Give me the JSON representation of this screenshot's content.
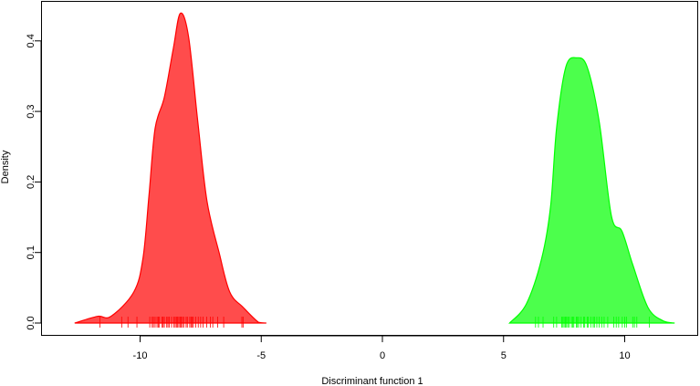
{
  "chart_data": {
    "type": "area",
    "title": "",
    "xlabel": "Discriminant function 1",
    "ylabel": "Density",
    "xlim": [
      -13.3,
      13.3
    ],
    "ylim": [
      -0.018,
      0.455
    ],
    "xticks": [
      -10,
      -5,
      0,
      5,
      10
    ],
    "xtick_labels": [
      "-10",
      "-5",
      "0",
      "5",
      "10"
    ],
    "yticks": [
      0.0,
      0.1,
      0.2,
      0.3,
      0.4
    ],
    "ytick_labels": [
      "0.0",
      "0.1",
      "0.2",
      "0.3",
      "0.4"
    ],
    "grid": false,
    "series": [
      {
        "color": "#ff4c4c",
        "edge_color": "#ff0000",
        "x": [
          -12.7,
          -11.76,
          -11.2,
          -10.26,
          -9.88,
          -9.63,
          -9.38,
          -9.0,
          -8.63,
          -8.34,
          -8.0,
          -7.62,
          -7.24,
          -6.74,
          -6.3,
          -5.74,
          -5.11,
          -4.79
        ],
        "y": [
          0,
          0.0095,
          0.0095,
          0.044,
          0.092,
          0.182,
          0.276,
          0.32,
          0.389,
          0.439,
          0.406,
          0.286,
          0.173,
          0.1,
          0.044,
          0.022,
          0.001,
          0
        ],
        "rug": [
          -11.66,
          -10.76,
          -10.5,
          -10.13,
          -9.6,
          -9.5,
          -9.45,
          -9.38,
          -9.3,
          -9.25,
          -9.2,
          -9.1,
          -9.05,
          -9.0,
          -8.9,
          -8.85,
          -8.8,
          -8.7,
          -8.6,
          -8.55,
          -8.5,
          -8.45,
          -8.4,
          -8.35,
          -8.3,
          -8.25,
          -8.2,
          -8.1,
          -8.05,
          -7.95,
          -7.9,
          -7.85,
          -7.8,
          -7.7,
          -7.6,
          -7.5,
          -7.4,
          -7.25,
          -7.1,
          -7.0,
          -6.8,
          -6.55,
          -5.8,
          -5.75
        ]
      },
      {
        "color": "#4cff4c",
        "edge_color": "#00ff00",
        "x": [
          5.25,
          5.94,
          6.57,
          6.94,
          7.19,
          7.57,
          8.01,
          8.45,
          8.95,
          9.45,
          9.89,
          10.33,
          10.96,
          11.59,
          12.06
        ],
        "y": [
          0,
          0.027,
          0.091,
          0.165,
          0.277,
          0.363,
          0.376,
          0.363,
          0.285,
          0.152,
          0.13,
          0.083,
          0.022,
          0.003,
          0
        ],
        "rug": [
          6.32,
          6.44,
          6.63,
          7.07,
          7.19,
          7.4,
          7.45,
          7.5,
          7.55,
          7.6,
          7.65,
          7.7,
          7.8,
          7.85,
          7.9,
          8.0,
          8.05,
          8.1,
          8.2,
          8.3,
          8.35,
          8.45,
          8.5,
          8.6,
          8.7,
          8.75,
          8.85,
          8.95,
          9.05,
          9.15,
          9.3,
          9.55,
          9.65,
          9.75,
          9.9,
          10.0,
          10.07,
          10.33,
          10.4,
          10.5,
          11.02
        ]
      }
    ]
  }
}
